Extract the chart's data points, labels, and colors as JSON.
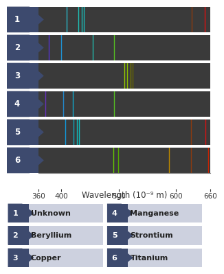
{
  "wavelength_range": [
    360,
    660
  ],
  "spectra": [
    {
      "label": "1",
      "name": "Unknown",
      "lines": [
        {
          "wavelength": 410,
          "color": "#2ab5c5"
        },
        {
          "wavelength": 430,
          "color": "#1ec0b8"
        },
        {
          "wavelength": 436,
          "color": "#1bbdb8"
        },
        {
          "wavelength": 440,
          "color": "#1bbdb8"
        },
        {
          "wavelength": 627,
          "color": "#8B3A10"
        },
        {
          "wavelength": 650,
          "color": "#dd1111"
        }
      ]
    },
    {
      "label": "2",
      "name": "Beryllium",
      "lines": [
        {
          "wavelength": 378,
          "color": "#5533cc"
        },
        {
          "wavelength": 400,
          "color": "#2090d0"
        },
        {
          "wavelength": 455,
          "color": "#22b8aa"
        },
        {
          "wavelength": 492,
          "color": "#55bb22"
        }
      ]
    },
    {
      "label": "3",
      "name": "Copper",
      "lines": [
        {
          "wavelength": 510,
          "color": "#99cc00"
        },
        {
          "wavelength": 515,
          "color": "#88bb00"
        },
        {
          "wavelength": 521,
          "color": "#777700"
        },
        {
          "wavelength": 524,
          "color": "#666600"
        }
      ]
    },
    {
      "label": "4",
      "name": "Manganese",
      "lines": [
        {
          "wavelength": 373,
          "color": "#6633bb"
        },
        {
          "wavelength": 403,
          "color": "#2288cc"
        },
        {
          "wavelength": 420,
          "color": "#11aacc"
        },
        {
          "wavelength": 492,
          "color": "#55bb22"
        }
      ]
    },
    {
      "label": "5",
      "name": "Strontium",
      "lines": [
        {
          "wavelength": 407,
          "color": "#1199dd"
        },
        {
          "wavelength": 421,
          "color": "#11aabb"
        },
        {
          "wavelength": 427,
          "color": "#11bbbb"
        },
        {
          "wavelength": 431,
          "color": "#11bbbb"
        },
        {
          "wavelength": 626,
          "color": "#8B3A10"
        },
        {
          "wavelength": 651,
          "color": "#dd1111"
        }
      ]
    },
    {
      "label": "6",
      "name": "Titanium",
      "lines": [
        {
          "wavelength": 491,
          "color": "#66cc00"
        },
        {
          "wavelength": 499,
          "color": "#55aa00"
        },
        {
          "wavelength": 588,
          "color": "#bb8800"
        },
        {
          "wavelength": 626,
          "color": "#8B3A10"
        },
        {
          "wavelength": 656,
          "color": "#cc2200"
        }
      ]
    }
  ],
  "panel_bg": "#3a3a3a",
  "label_bg": "#3d4a6e",
  "legend_bg": "#cdd1df",
  "axis_color": "#333333",
  "axis_label": "Wavelength (10⁻⁹ m)",
  "x_ticks": [
    360,
    400,
    500,
    600,
    660
  ],
  "figure_bg": "#ffffff",
  "tick_fontsize": 7.5,
  "label_fontsize": 8.5,
  "legend_fontsize": 8,
  "num_fontsize": 8.5
}
